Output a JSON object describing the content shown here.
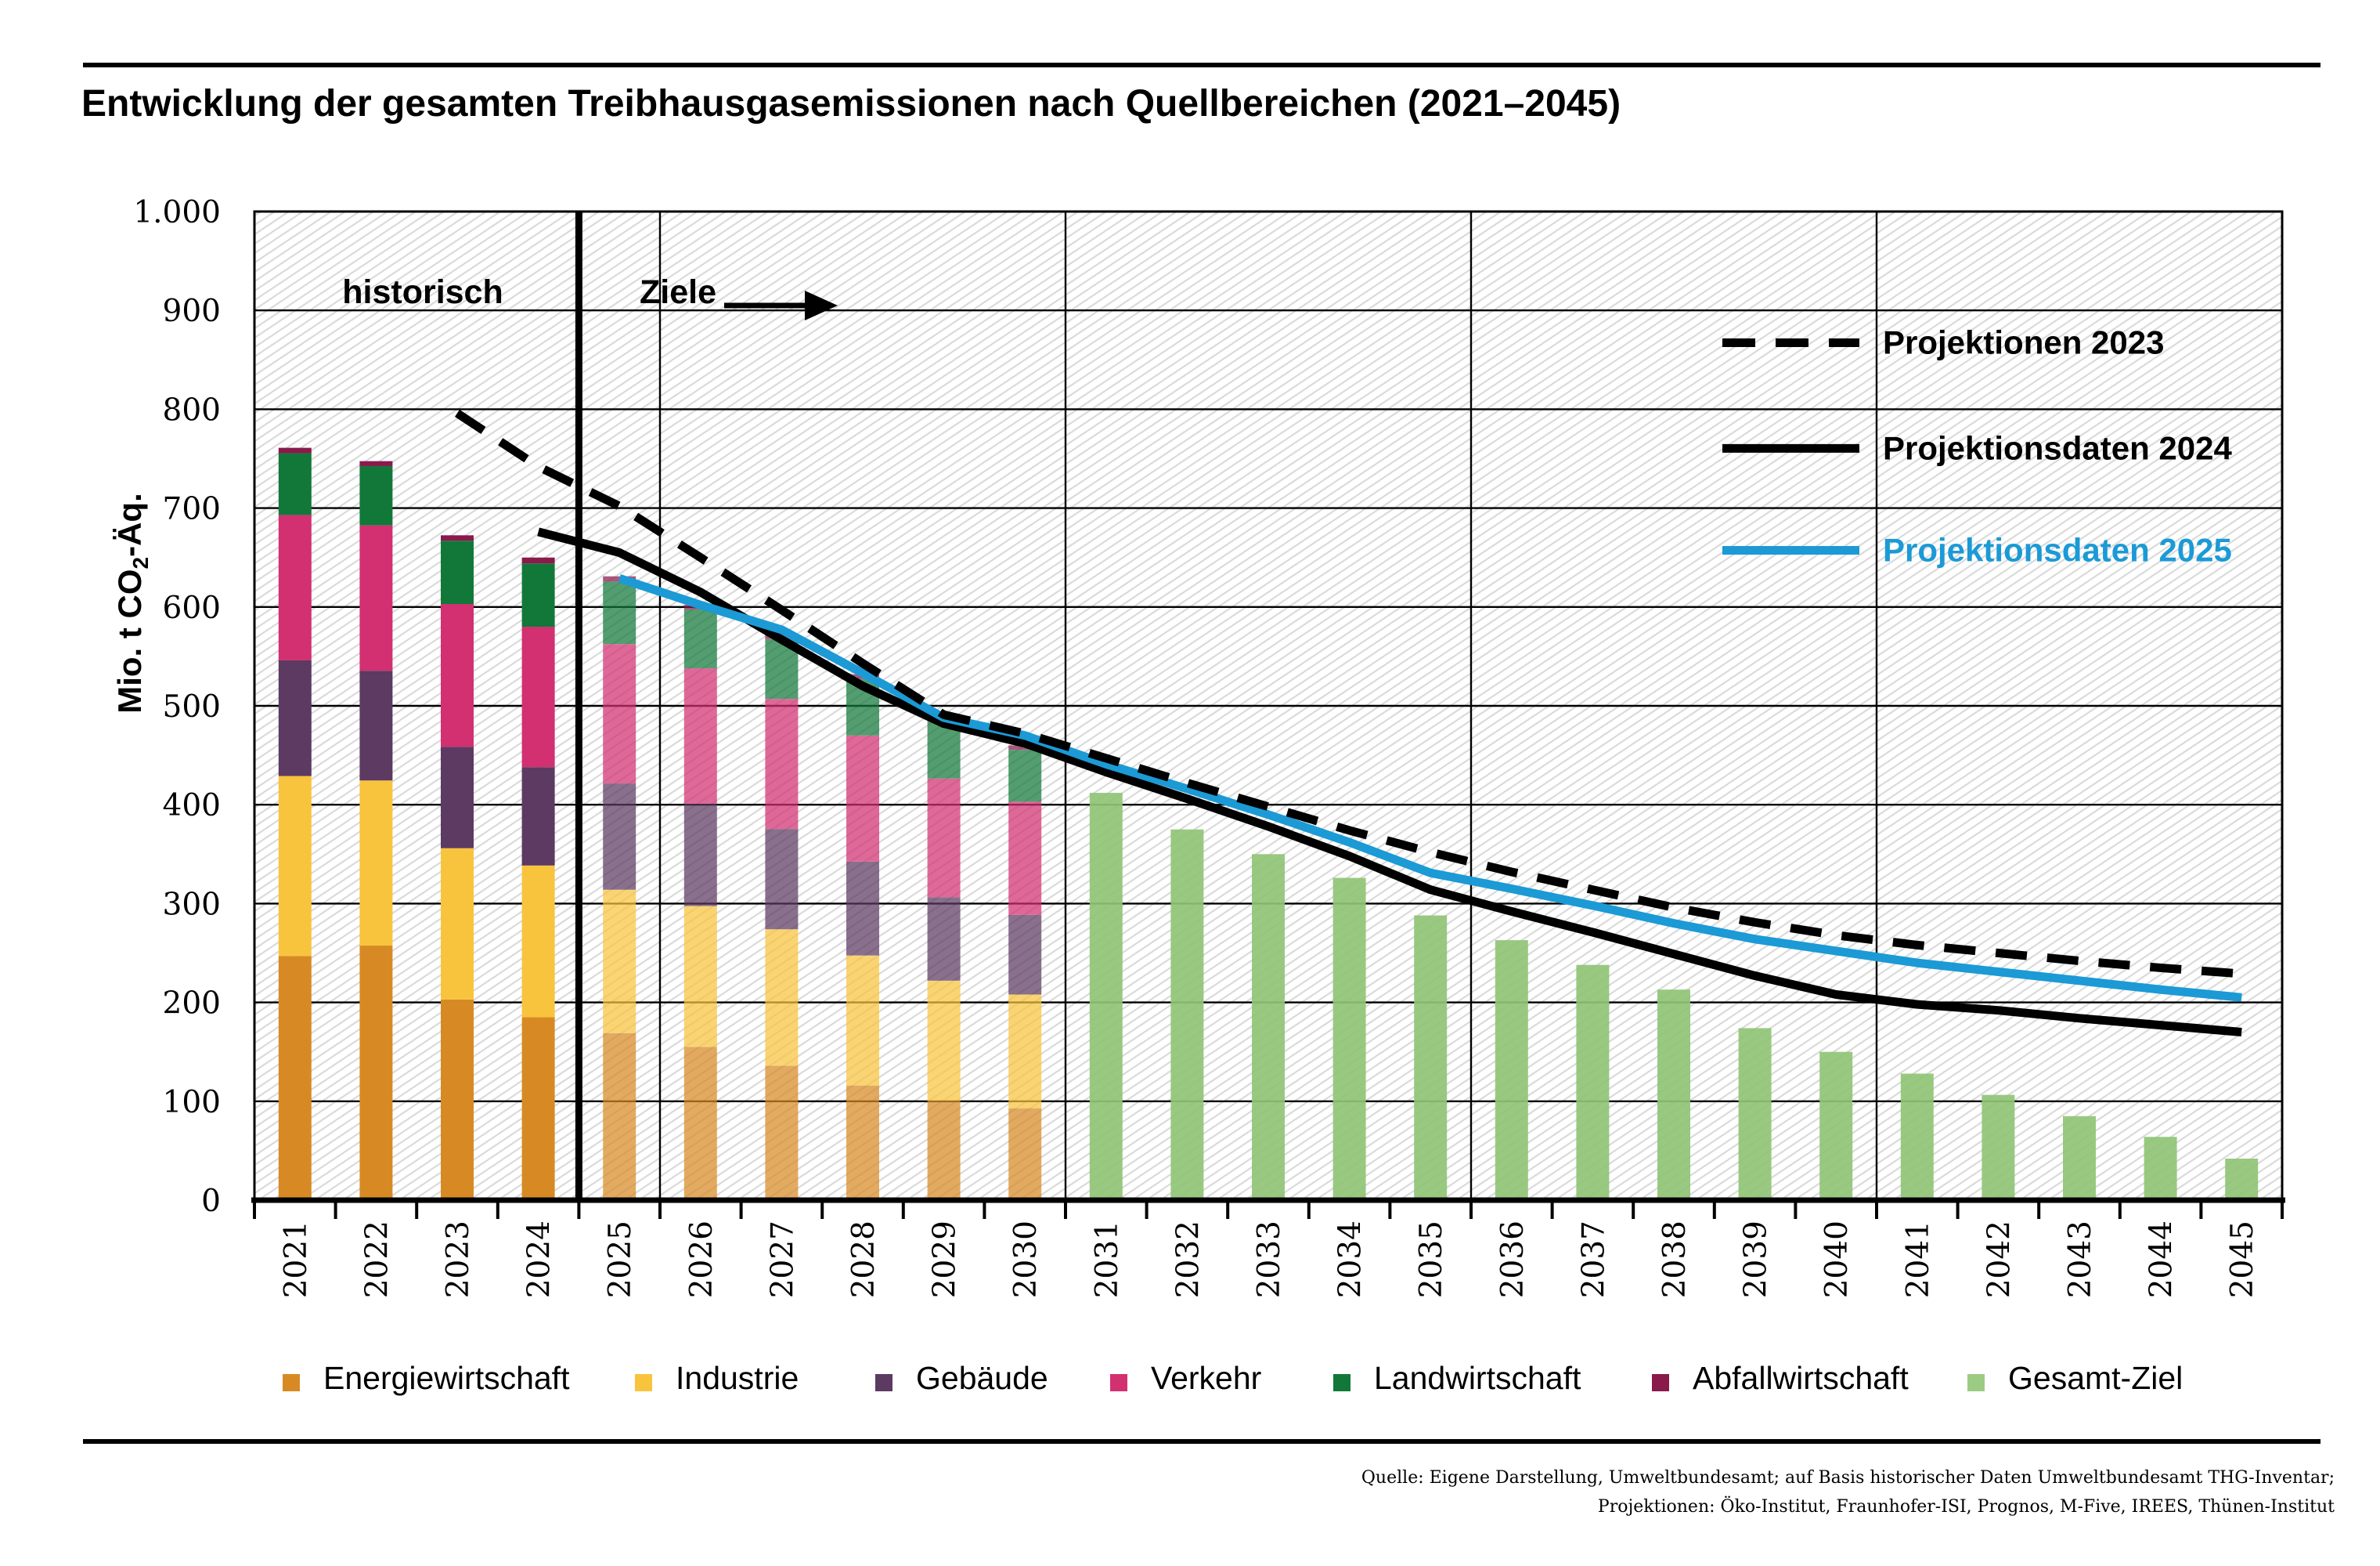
{
  "title": "Entwicklung der gesamten Treibhausgasemissionen nach Quellbereichen (2021–2045)",
  "annotations": {
    "historical_label": "historisch",
    "targets_label": "Ziele"
  },
  "line_legend": [
    {
      "name": "Projektionen 2023",
      "style": "dashed",
      "color": "#000000"
    },
    {
      "name": "Projektionsdaten 2024",
      "style": "solid",
      "color": "#000000"
    },
    {
      "name": "Projektionsdaten 2025",
      "style": "solid",
      "color": "#1B9AD6"
    }
  ],
  "legend": [
    {
      "label": "Energiewirtschaft",
      "color": "#D78A24"
    },
    {
      "label": "Industrie",
      "color": "#F9C43D"
    },
    {
      "label": "Gebäude",
      "color": "#5C3A62"
    },
    {
      "label": "Verkehr",
      "color": "#D23071"
    },
    {
      "label": "Landwirtschaft",
      "color": "#12783A"
    },
    {
      "label": "Abfallwirtschaft",
      "color": "#8A1A4C"
    },
    {
      "label": "Gesamt-Ziel",
      "color": "#9CCB83"
    }
  ],
  "footer": {
    "line1": "Quelle: Eigene Darstellung, Umweltbundesamt; auf Basis historischer Daten Umweltbundesamt THG-Inventar;",
    "line2": "Projektionen: Öko-Institut, Fraunhofer-ISI, Prognos, M-Five, IREES, Thünen-Institut"
  },
  "chart_data": {
    "type": "bar",
    "title": "Entwicklung der gesamten Treibhausgasemissionen nach Quellbereichen (2021–2045)",
    "xlabel": "",
    "ylabel": "Mio. t CO₂-Äq.",
    "ylim": [
      0,
      1000
    ],
    "ytick_step": 100,
    "ytick_labels": [
      "0",
      "100",
      "200",
      "300",
      "400",
      "500",
      "600",
      "700",
      "800",
      "900",
      "1.000"
    ],
    "categories": [
      2021,
      2022,
      2023,
      2024,
      2025,
      2026,
      2027,
      2028,
      2029,
      2030,
      2031,
      2032,
      2033,
      2034,
      2035,
      2036,
      2037,
      2038,
      2039,
      2040,
      2041,
      2042,
      2043,
      2044,
      2045
    ],
    "historical_years": [
      2021,
      2022,
      2023,
      2024
    ],
    "target_stacked_years": [
      2025,
      2026,
      2027,
      2028,
      2029,
      2030
    ],
    "stacked_series": [
      {
        "name": "Energiewirtschaft",
        "color": "#D78A24",
        "values": [
          247,
          257.5,
          203,
          185,
          169,
          155,
          136,
          116,
          100,
          93
        ]
      },
      {
        "name": "Industrie",
        "color": "#F9C43D",
        "values": [
          182,
          167.0,
          153,
          153.5,
          145,
          142.5,
          138,
          131.5,
          122,
          115
        ]
      },
      {
        "name": "Gebäude",
        "color": "#5C3A62",
        "values": [
          117,
          111.0,
          102.5,
          99.5,
          107.5,
          103.5,
          101.5,
          95.0,
          84.5,
          80.5
        ]
      },
      {
        "name": "Verkehr",
        "color": "#D23071",
        "values": [
          147,
          147.0,
          144.5,
          142,
          141.0,
          137,
          131.5,
          127.5,
          120.0,
          114.5
        ]
      },
      {
        "name": "Landwirtschaft",
        "color": "#12783A",
        "values": [
          62.5,
          60.0,
          64,
          64,
          63.0,
          59.5,
          60.5,
          57,
          57.5,
          52.5
        ]
      },
      {
        "name": "Abfallwirtschaft",
        "color": "#8A1A4C",
        "values": [
          5.5,
          5.0,
          5.5,
          6,
          5.5,
          4.5,
          4.5,
          5,
          5,
          4.5
        ]
      }
    ],
    "goal_series": {
      "name": "Gesamt-Ziel",
      "color": "#90C476",
      "years": [
        2031,
        2032,
        2033,
        2034,
        2035,
        2036,
        2037,
        2038,
        2039,
        2040,
        2041,
        2042,
        2043,
        2044,
        2045
      ],
      "values": [
        412,
        375,
        350,
        326,
        288,
        263,
        238,
        213,
        174,
        150,
        128,
        106.5,
        85,
        64,
        42
      ]
    },
    "lines": [
      {
        "name": "Projektionen 2023",
        "color": "#000000",
        "style": "dashed",
        "start_year": 2023,
        "values": [
          796,
          742,
          702,
          650,
          597,
          543,
          491,
          472,
          447,
          422,
          398,
          374,
          352,
          332,
          314,
          296,
          281,
          268,
          258,
          250,
          242,
          235,
          229
        ]
      },
      {
        "name": "Projektionsdaten 2024",
        "color": "#000000",
        "style": "solid",
        "start_year": 2024,
        "values": [
          676,
          655,
          615,
          567,
          520,
          482,
          462,
          433,
          406,
          378,
          348,
          314,
          292,
          271,
          249,
          227,
          208,
          198,
          192,
          184,
          177,
          170
        ]
      },
      {
        "name": "Projektionsdaten 2025",
        "color": "#1B9AD6",
        "style": "solid",
        "start_year": 2025,
        "values": [
          629,
          602,
          577,
          533,
          488,
          470,
          441,
          416,
          390,
          362,
          331,
          315,
          298,
          280,
          264,
          252,
          240,
          231,
          222,
          213,
          205
        ]
      }
    ]
  }
}
